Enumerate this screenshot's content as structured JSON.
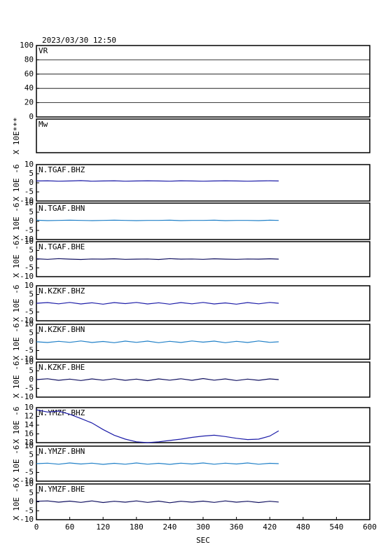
{
  "header": {
    "title": "2023/03/30  12:50"
  },
  "x_axis": {
    "label": "SEC",
    "xlim": [
      0,
      600
    ],
    "xticks": [
      0,
      60,
      120,
      180,
      240,
      300,
      360,
      420,
      480,
      540,
      600
    ]
  },
  "chart_data": [
    {
      "type": "line",
      "label": "VR",
      "ylim": [
        0,
        100
      ],
      "yticks": [
        0,
        20,
        40,
        60,
        80,
        100
      ],
      "grid": true,
      "x": [],
      "series": []
    },
    {
      "type": "line",
      "label": "Mw",
      "ylabel": "X 10E***",
      "x": [],
      "series": []
    },
    {
      "type": "line",
      "label": "N.TGAF.BHZ",
      "ylabel": "X 10E -6",
      "ylim": [
        -10,
        10
      ],
      "yticks": [
        -10,
        -5,
        0,
        5,
        10
      ],
      "x": [
        0,
        20,
        40,
        60,
        80,
        100,
        120,
        140,
        160,
        180,
        200,
        220,
        240,
        260,
        280,
        300,
        320,
        340,
        360,
        380,
        400,
        420,
        436
      ],
      "series": [
        {
          "color": "#1c1ca8",
          "values": [
            1.0,
            1.1,
            0.9,
            1.0,
            1.2,
            0.9,
            1.0,
            1.1,
            0.9,
            1.0,
            1.1,
            1.0,
            0.9,
            1.1,
            1.0,
            0.9,
            1.0,
            1.1,
            1.0,
            0.9,
            1.0,
            1.1,
            1.0
          ]
        }
      ]
    },
    {
      "type": "line",
      "label": "N.TGAF.BHN",
      "ylabel": "X 10E -6",
      "ylim": [
        -10,
        10
      ],
      "yticks": [
        -10,
        -5,
        0,
        5,
        10
      ],
      "x": [
        0,
        20,
        40,
        60,
        80,
        100,
        120,
        140,
        160,
        180,
        200,
        220,
        240,
        260,
        280,
        300,
        320,
        340,
        360,
        380,
        400,
        420,
        436
      ],
      "series": [
        {
          "color": "#2080c8",
          "values": [
            0.6,
            0.4,
            0.5,
            0.6,
            0.5,
            0.4,
            0.5,
            0.6,
            0.5,
            0.4,
            0.5,
            0.5,
            0.6,
            0.4,
            0.5,
            0.5,
            0.6,
            0.4,
            0.5,
            0.5,
            0.4,
            0.6,
            0.5
          ]
        }
      ]
    },
    {
      "type": "line",
      "label": "N.TGAF.BHE",
      "ylabel": "X 10E -6",
      "ylim": [
        -10,
        10
      ],
      "yticks": [
        -10,
        -5,
        0,
        5,
        10
      ],
      "x": [
        0,
        20,
        40,
        60,
        80,
        100,
        120,
        140,
        160,
        180,
        200,
        220,
        240,
        260,
        280,
        300,
        320,
        340,
        360,
        380,
        400,
        420,
        436
      ],
      "series": [
        {
          "color": "#101060",
          "values": [
            0.2,
            -0.1,
            0.3,
            0,
            -0.2,
            0.1,
            0,
            0.2,
            -0.1,
            0,
            0.1,
            -0.2,
            0.3,
            0,
            0.1,
            -0.1,
            0.2,
            0,
            -0.1,
            0.1,
            0,
            0.2,
            0
          ]
        }
      ]
    },
    {
      "type": "line",
      "label": "N.KZKF.BHZ",
      "ylabel": "X 10E -6",
      "ylim": [
        -10,
        10
      ],
      "yticks": [
        -10,
        -5,
        0,
        5,
        10
      ],
      "x": [
        0,
        20,
        40,
        60,
        80,
        100,
        120,
        140,
        160,
        180,
        200,
        220,
        240,
        260,
        280,
        300,
        320,
        340,
        360,
        380,
        400,
        420,
        436
      ],
      "series": [
        {
          "color": "#1c1ca8",
          "values": [
            0,
            0.4,
            -0.3,
            0.5,
            -0.4,
            0.3,
            -0.5,
            0.4,
            -0.2,
            0.5,
            -0.4,
            0.3,
            -0.5,
            0.4,
            -0.3,
            0.5,
            -0.4,
            0.2,
            -0.5,
            0.4,
            -0.3,
            0.5,
            0
          ]
        }
      ]
    },
    {
      "type": "line",
      "label": "N.KZKF.BHN",
      "ylabel": "X 10E -6",
      "ylim": [
        -10,
        10
      ],
      "yticks": [
        -10,
        -5,
        0,
        5,
        10
      ],
      "x": [
        0,
        20,
        40,
        60,
        80,
        100,
        120,
        140,
        160,
        180,
        200,
        220,
        240,
        260,
        280,
        300,
        320,
        340,
        360,
        380,
        400,
        420,
        436
      ],
      "series": [
        {
          "color": "#2080c8",
          "values": [
            0,
            -0.4,
            0.3,
            -0.3,
            0.5,
            -0.4,
            0.2,
            -0.5,
            0.4,
            -0.3,
            0.4,
            -0.5,
            0.3,
            -0.4,
            0.5,
            -0.2,
            0.4,
            -0.5,
            0.3,
            -0.4,
            0.5,
            -0.3,
            0
          ]
        }
      ]
    },
    {
      "type": "line",
      "label": "N.KZKF.BHE",
      "ylabel": "X 10E -6",
      "ylim": [
        -10,
        10
      ],
      "yticks": [
        -10,
        -5,
        0,
        5,
        10
      ],
      "x": [
        0,
        20,
        40,
        60,
        80,
        100,
        120,
        140,
        160,
        180,
        200,
        220,
        240,
        260,
        280,
        300,
        320,
        340,
        360,
        380,
        400,
        420,
        436
      ],
      "series": [
        {
          "color": "#101060",
          "values": [
            0,
            0.5,
            -0.4,
            0.3,
            -0.5,
            0.4,
            -0.3,
            0.5,
            -0.4,
            0.3,
            -0.6,
            0.4,
            -0.3,
            0.5,
            -0.4,
            0.6,
            -0.3,
            0.4,
            -0.5,
            0.3,
            -0.4,
            0.4,
            0
          ]
        }
      ]
    },
    {
      "type": "line",
      "label": "N.YMZF.BHZ",
      "ylabel": "X 10E -6",
      "ylim": [
        -18,
        -10
      ],
      "yticks": [
        {
          "value": -18,
          "label": "18"
        },
        {
          "value": -16,
          "label": "16"
        },
        {
          "value": -14,
          "label": "14"
        },
        {
          "value": -12,
          "label": "12"
        },
        {
          "value": -10,
          "label": "10"
        }
      ],
      "x": [
        0,
        20,
        40,
        60,
        80,
        100,
        120,
        140,
        160,
        180,
        200,
        220,
        240,
        260,
        280,
        300,
        320,
        340,
        360,
        380,
        400,
        420,
        436
      ],
      "series": [
        {
          "color": "#1c1ca8",
          "values": [
            -10.5,
            -11,
            -10.8,
            -11.5,
            -12.5,
            -13.5,
            -15,
            -16.3,
            -17.2,
            -17.8,
            -18,
            -17.8,
            -17.5,
            -17.2,
            -16.8,
            -16.5,
            -16.3,
            -16.6,
            -17,
            -17.3,
            -17.2,
            -16.5,
            -15.3
          ]
        }
      ]
    },
    {
      "type": "line",
      "label": "N.YMZF.BHN",
      "ylabel": "X 10E -6",
      "ylim": [
        -10,
        10
      ],
      "yticks": [
        -10,
        -5,
        0,
        5,
        10
      ],
      "x": [
        0,
        20,
        40,
        60,
        80,
        100,
        120,
        140,
        160,
        180,
        200,
        220,
        240,
        260,
        280,
        300,
        320,
        340,
        360,
        380,
        400,
        420,
        436
      ],
      "series": [
        {
          "color": "#2080c8",
          "values": [
            0,
            0.3,
            -0.3,
            0.4,
            -0.2,
            0.3,
            -0.4,
            0.2,
            -0.3,
            0.4,
            -0.3,
            0.2,
            -0.4,
            0.3,
            -0.2,
            0.4,
            -0.3,
            0.3,
            -0.2,
            0.4,
            -0.3,
            0.2,
            0
          ]
        }
      ]
    },
    {
      "type": "line",
      "label": "N.YMZF.BHE",
      "ylabel": "X 10E -6",
      "ylim": [
        -10,
        10
      ],
      "yticks": [
        -10,
        -5,
        0,
        5,
        10
      ],
      "x": [
        0,
        20,
        40,
        60,
        80,
        100,
        120,
        140,
        160,
        180,
        200,
        220,
        240,
        260,
        280,
        300,
        320,
        340,
        360,
        380,
        400,
        420,
        436
      ],
      "series": [
        {
          "color": "#101060",
          "values": [
            0.3,
            0.5,
            -0.2,
            0.4,
            -0.3,
            0.5,
            -0.4,
            0.3,
            -0.2,
            0.5,
            -0.3,
            0.4,
            -0.5,
            0.3,
            -0.2,
            0.4,
            -0.3,
            0.5,
            -0.2,
            0.3,
            -0.4,
            0.3,
            -0.1
          ]
        }
      ]
    }
  ]
}
